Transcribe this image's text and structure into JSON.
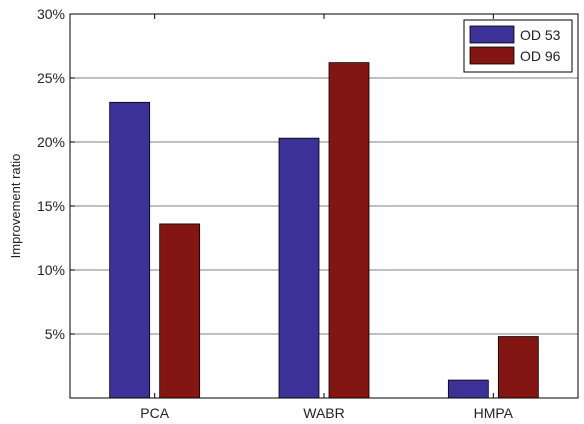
{
  "chart_data": {
    "type": "bar",
    "categories": [
      "PCA",
      "WABR",
      "HMPA"
    ],
    "series": [
      {
        "name": "OD 53",
        "values": [
          23.1,
          20.3,
          1.4
        ],
        "color": "#3b3196"
      },
      {
        "name": "OD 96",
        "values": [
          13.6,
          26.2,
          4.8
        ],
        "color": "#831612"
      }
    ],
    "ylabel": "Improvement ratio",
    "ylim": [
      0,
      30
    ],
    "yticks": [
      5,
      10,
      15,
      20,
      25,
      30
    ],
    "ytick_labels": [
      "5%",
      "10%",
      "15%",
      "20%",
      "25%",
      "30%"
    ],
    "grid": "horizontal",
    "legend_position": "top-right"
  }
}
